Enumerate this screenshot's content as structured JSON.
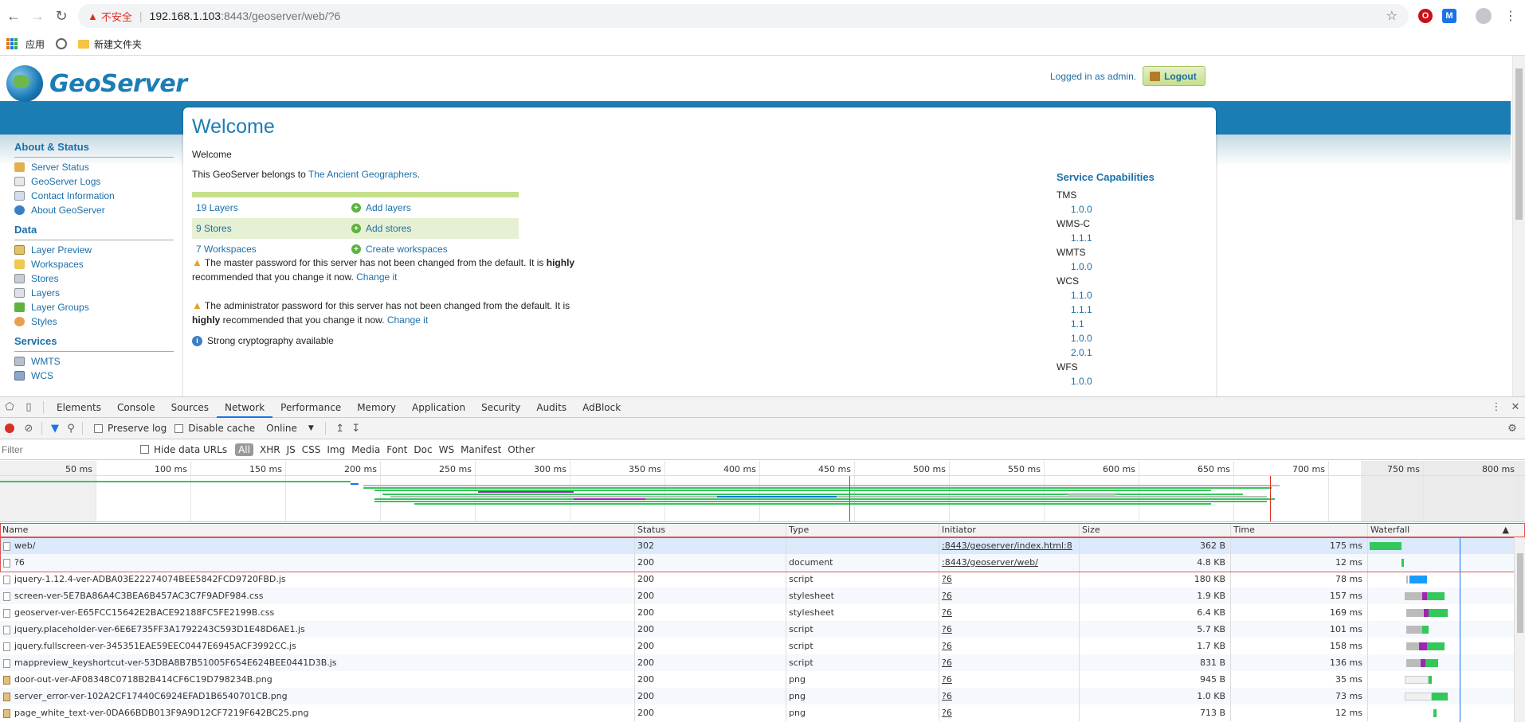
{
  "browser": {
    "insecure_label": "不安全",
    "url_host": "192.168.1.103",
    "url_rest": ":8443/geoserver/web/?6",
    "bookmarks": {
      "apps": "应用",
      "folder": "新建文件夹"
    }
  },
  "geoserver": {
    "logo": "GeoServer",
    "logged_in": "Logged in as admin.",
    "logout": "Logout",
    "sidebar": {
      "about_title": "About & Status",
      "about_items": [
        "Server Status",
        "GeoServer Logs",
        "Contact Information",
        "About GeoServer"
      ],
      "data_title": "Data",
      "data_items": [
        "Layer Preview",
        "Workspaces",
        "Stores",
        "Layers",
        "Layer Groups",
        "Styles"
      ],
      "services_title": "Services",
      "services_items": [
        "WMTS",
        "WCS"
      ]
    },
    "welcome_title": "Welcome",
    "welcome_sub": "Welcome",
    "belongs_prefix": "This GeoServer belongs to ",
    "belongs_link": "The Ancient Geographers",
    "belongs_suffix": ".",
    "summary": [
      {
        "count": "19 Layers",
        "action": "Add layers"
      },
      {
        "count": "9 Stores",
        "action": "Add stores"
      },
      {
        "count": "7 Workspaces",
        "action": "Create workspaces"
      }
    ],
    "warning_master": {
      "before": "The master password for this server has not been changed from the default. It is ",
      "bold": "highly",
      "after": " recommended that you change it now. ",
      "link": "Change it"
    },
    "warning_admin": {
      "before": "The administrator password for this server has not been changed from the default. It is ",
      "bold": "highly",
      "after": " recommended that you change it now. ",
      "link": "Change it"
    },
    "crypto": "Strong cryptography available",
    "capabilities_title": "Service Capabilities",
    "capabilities": [
      {
        "service": "TMS",
        "versions": [
          "1.0.0"
        ]
      },
      {
        "service": "WMS-C",
        "versions": [
          "1.1.1"
        ]
      },
      {
        "service": "WMTS",
        "versions": [
          "1.0.0"
        ]
      },
      {
        "service": "WCS",
        "versions": [
          "1.1.0",
          "1.1.1",
          "1.1",
          "1.0.0",
          "2.0.1"
        ]
      },
      {
        "service": "WFS",
        "versions": [
          "1.0.0"
        ]
      }
    ]
  },
  "devtools": {
    "tabs": [
      "Elements",
      "Console",
      "Sources",
      "Network",
      "Performance",
      "Memory",
      "Application",
      "Security",
      "Audits",
      "AdBlock"
    ],
    "active_tab": "Network",
    "preserve_log": "Preserve log",
    "disable_cache": "Disable cache",
    "throttle": "Online",
    "filter_placeholder": "Filter",
    "hide_data_urls": "Hide data URLs",
    "filter_types": [
      "All",
      "XHR",
      "JS",
      "CSS",
      "Img",
      "Media",
      "Font",
      "Doc",
      "WS",
      "Manifest",
      "Other"
    ],
    "overview_ticks": [
      "50 ms",
      "100 ms",
      "150 ms",
      "200 ms",
      "250 ms",
      "300 ms",
      "350 ms",
      "400 ms",
      "450 ms",
      "500 ms",
      "550 ms",
      "600 ms",
      "650 ms",
      "700 ms",
      "750 ms",
      "800 ms"
    ],
    "columns": [
      "Name",
      "Status",
      "Type",
      "Initiator",
      "Size",
      "Time",
      "Waterfall"
    ],
    "requests": [
      {
        "name": "web/",
        "status": "302",
        "type": "",
        "initiator": ":8443/geoserver/index.html:8",
        "size": "362 B",
        "time": "175 ms",
        "icon": "doc"
      },
      {
        "name": "?6",
        "status": "200",
        "type": "document",
        "initiator": ":8443/geoserver/web/",
        "size": "4.8 KB",
        "time": "12 ms",
        "icon": "doc"
      },
      {
        "name": "jquery-1.12.4-ver-ADBA03E22274074BEE5842FCD9720FBD.js",
        "status": "200",
        "type": "script",
        "initiator": "?6",
        "size": "180 KB",
        "time": "78 ms",
        "icon": "doc"
      },
      {
        "name": "screen-ver-5E7BA86A4C3BEA6B457AC3C7F9ADF984.css",
        "status": "200",
        "type": "stylesheet",
        "initiator": "?6",
        "size": "1.9 KB",
        "time": "157 ms",
        "icon": "doc"
      },
      {
        "name": "geoserver-ver-E65FCC15642E2BACE92188FC5FE2199B.css",
        "status": "200",
        "type": "stylesheet",
        "initiator": "?6",
        "size": "6.4 KB",
        "time": "169 ms",
        "icon": "doc"
      },
      {
        "name": "jquery.placeholder-ver-6E6E735FF3A1792243C593D1E48D6AE1.js",
        "status": "200",
        "type": "script",
        "initiator": "?6",
        "size": "5.7 KB",
        "time": "101 ms",
        "icon": "doc"
      },
      {
        "name": "jquery.fullscreen-ver-345351EAE59EEC0447E6945ACF3992CC.js",
        "status": "200",
        "type": "script",
        "initiator": "?6",
        "size": "1.7 KB",
        "time": "158 ms",
        "icon": "doc"
      },
      {
        "name": "mappreview_keyshortcut-ver-53DBA8B7B51005F654E624BEE0441D3B.js",
        "status": "200",
        "type": "script",
        "initiator": "?6",
        "size": "831 B",
        "time": "136 ms",
        "icon": "doc"
      },
      {
        "name": "door-out-ver-AF08348C0718B2B414CF6C19D798234B.png",
        "status": "200",
        "type": "png",
        "initiator": "?6",
        "size": "945 B",
        "time": "35 ms",
        "icon": "img"
      },
      {
        "name": "server_error-ver-102A2CF17440C6924EFAD1B6540701CB.png",
        "status": "200",
        "type": "png",
        "initiator": "?6",
        "size": "1.0 KB",
        "time": "73 ms",
        "icon": "img"
      },
      {
        "name": "page_white_text-ver-0DA66BDB013F9A9D12CF7219F642BC25.png",
        "status": "200",
        "type": "png",
        "initiator": "?6",
        "size": "713 B",
        "time": "12 ms",
        "icon": "img"
      }
    ]
  }
}
